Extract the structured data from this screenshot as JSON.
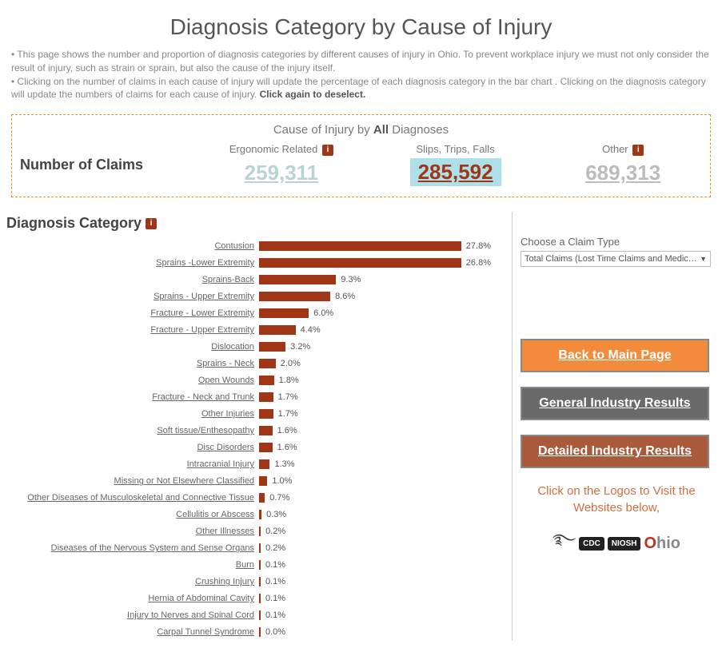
{
  "title": "Diagnosis Category by Cause of Injury",
  "intro": {
    "line1": "• This page shows the number and proportion of diagnosis categories by different causes of injury in Ohio. To prevent workplace injury we must not only consider the result of injury, such as strain or sprain, but also the cause of the injury itself.",
    "line2a": "• Clicking on the number of claims in each cause of injury will update the percentage of each diagnosis category in the bar chart . Clicking on the diagnosis category will update the numbers of claims for each cause of injury. ",
    "line2bold": "Click again to deselect."
  },
  "claims_panel": {
    "heading_prefix": "Cause of Injury by ",
    "heading_bold": "All ",
    "heading_suffix": "Diagnoses",
    "row_label": "Number of Claims",
    "cols": [
      {
        "label": "Ergonomic Related",
        "value": "259,311",
        "info": true,
        "cls": "claim-ergo"
      },
      {
        "label": "Slips, Trips, Falls",
        "value": "285,592",
        "info": false,
        "cls": "claim-slips"
      },
      {
        "label": "Other",
        "value": "689,313",
        "info": true,
        "cls": "claim-other"
      }
    ]
  },
  "dc_header": "Diagnosis Category",
  "chart": {
    "bar_color": "#a03616",
    "max_pct": 28.0,
    "rows": [
      {
        "label": "Contusion",
        "pct": 27.8,
        "pct_txt": "27.8%"
      },
      {
        "label": "Sprains -Lower Extremity",
        "pct": 26.8,
        "pct_txt": "26.8%"
      },
      {
        "label": "Sprains-Back",
        "pct": 9.3,
        "pct_txt": "9.3%"
      },
      {
        "label": "Sprains - Upper Extremity",
        "pct": 8.6,
        "pct_txt": "8.6%"
      },
      {
        "label": "Fracture - Lower Extremity",
        "pct": 6.0,
        "pct_txt": "6.0%"
      },
      {
        "label": "Fracture - Upper Extremity",
        "pct": 4.4,
        "pct_txt": "4.4%"
      },
      {
        "label": "Dislocation",
        "pct": 3.2,
        "pct_txt": "3.2%"
      },
      {
        "label": "Sprains - Neck",
        "pct": 2.0,
        "pct_txt": "2.0%"
      },
      {
        "label": "Open Wounds",
        "pct": 1.8,
        "pct_txt": "1.8%"
      },
      {
        "label": "Fracture - Neck and Trunk",
        "pct": 1.7,
        "pct_txt": "1.7%"
      },
      {
        "label": "Other Injuries",
        "pct": 1.7,
        "pct_txt": "1.7%"
      },
      {
        "label": "Soft tissue/Enthesopathy",
        "pct": 1.6,
        "pct_txt": "1.6%"
      },
      {
        "label": "Disc Disorders",
        "pct": 1.6,
        "pct_txt": "1.6%"
      },
      {
        "label": "Intracranial Injury",
        "pct": 1.3,
        "pct_txt": "1.3%"
      },
      {
        "label": "Missing or Not Elsewhere Classified",
        "pct": 1.0,
        "pct_txt": "1.0%"
      },
      {
        "label": "Other Diseases of Musculoskeletal and Connective Tissue",
        "pct": 0.7,
        "pct_txt": "0.7%"
      },
      {
        "label": "Cellulitis or Abscess",
        "pct": 0.3,
        "pct_txt": "0.3%"
      },
      {
        "label": "Other Illnesses",
        "pct": 0.2,
        "pct_txt": "0.2%"
      },
      {
        "label": "Diseases of the Nervous System and Sense Organs",
        "pct": 0.2,
        "pct_txt": "0.2%"
      },
      {
        "label": "Burn",
        "pct": 0.1,
        "pct_txt": "0.1%"
      },
      {
        "label": "Crushing Injury",
        "pct": 0.1,
        "pct_txt": "0.1%"
      },
      {
        "label": "Hernia of Abdominal Cavity",
        "pct": 0.1,
        "pct_txt": "0.1%"
      },
      {
        "label": "Injury to Nerves and Spinal Cord",
        "pct": 0.1,
        "pct_txt": "0.1%"
      },
      {
        "label": "Carpal Tunnel Syndrome",
        "pct": 0.0,
        "pct_txt": "0.0%"
      }
    ]
  },
  "right": {
    "claim_type_label": "Choose a Claim Type",
    "claim_type_value": "Total Claims (Lost Time Claims and Medic…",
    "btn_main": "Back to Main Page",
    "btn_general": "General Industry Results",
    "btn_detailed": "Detailed Industry Results",
    "logos_label": "Click on the Logos to Visit the Websites below,",
    "logo_cdc": "CDC",
    "logo_niosh": "NIOSH",
    "logo_ohio_o": "O",
    "logo_ohio_rest": "hio"
  }
}
